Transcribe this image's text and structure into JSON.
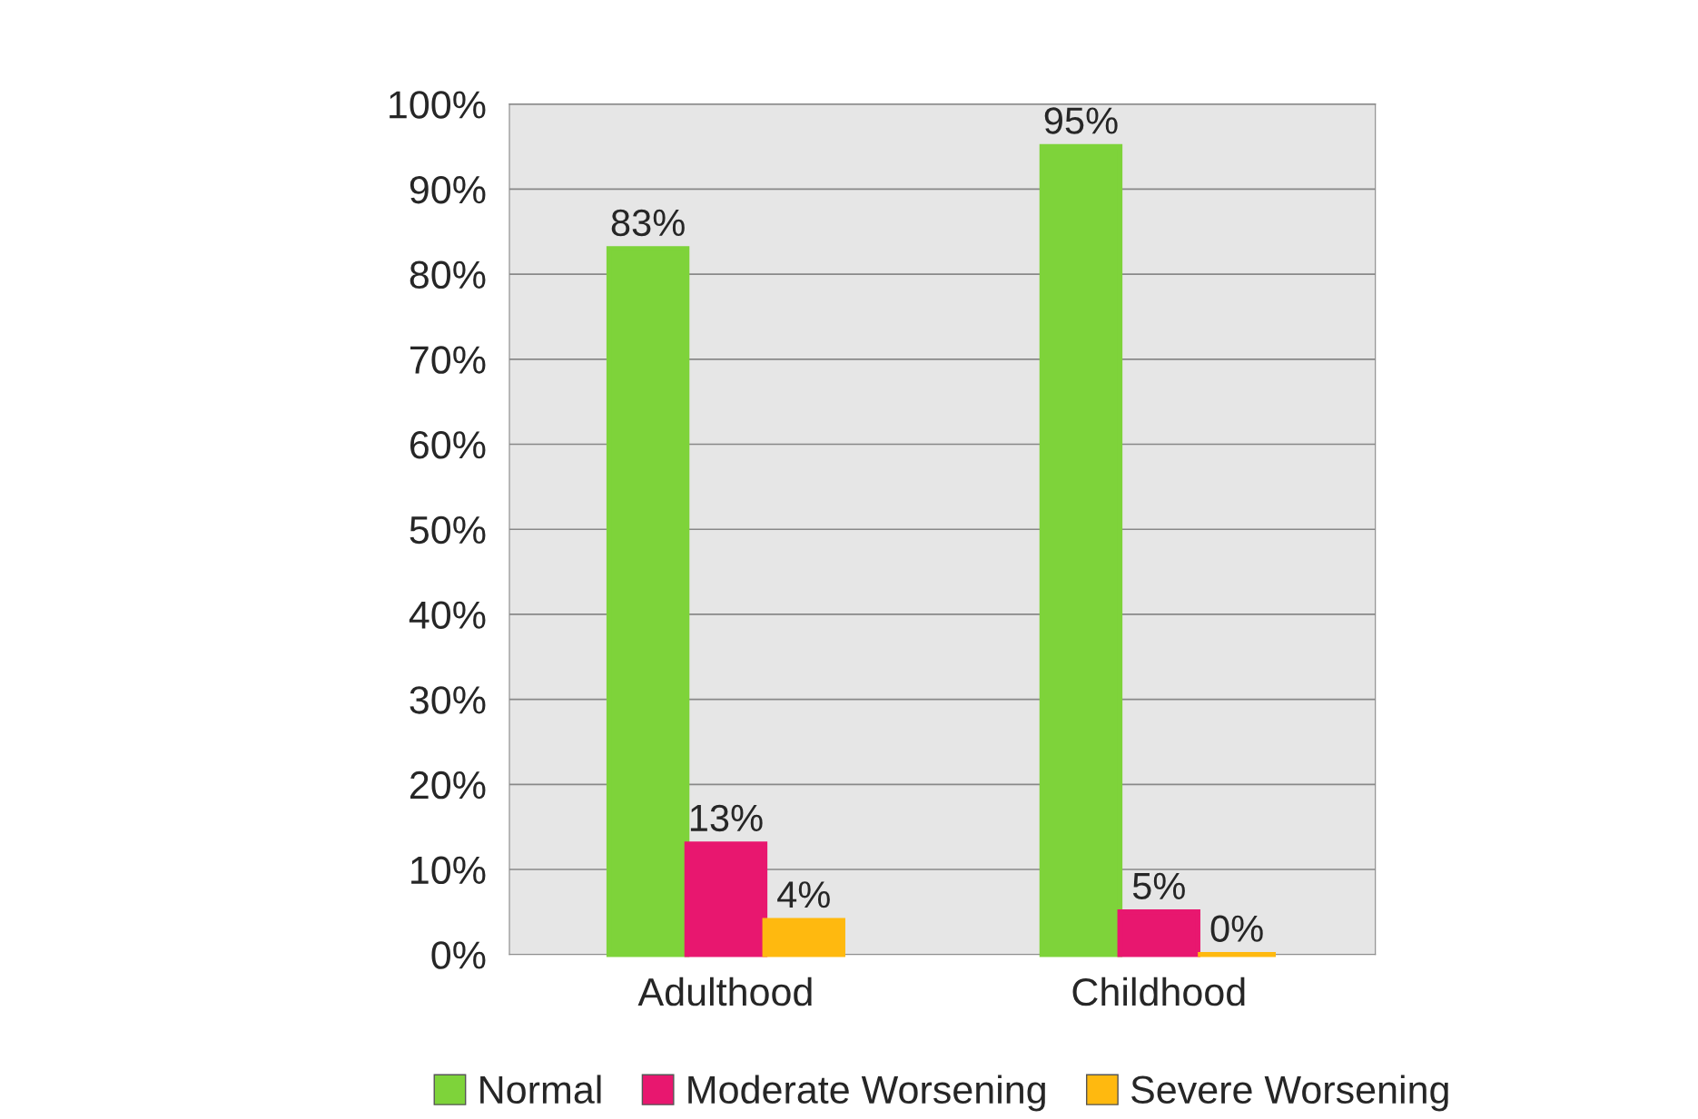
{
  "chart_data": {
    "type": "bar",
    "categories": [
      "Adulthood",
      "Childhood"
    ],
    "series": [
      {
        "name": "Normal",
        "color": "#7ed33a",
        "values": [
          83,
          95
        ],
        "value_labels": [
          "83%",
          "95%"
        ]
      },
      {
        "name": "Moderate Worsening",
        "color": "#e8176f",
        "values": [
          13,
          5
        ],
        "value_labels": [
          "13%",
          "5%"
        ]
      },
      {
        "name": "Severe Worsening",
        "color": "#ffb90f",
        "values": [
          4,
          0
        ],
        "value_labels": [
          "4%",
          "0%"
        ]
      }
    ],
    "ylim": [
      0,
      100
    ],
    "yticks": [
      {
        "value": 0,
        "label": "0%"
      },
      {
        "value": 10,
        "label": "10%"
      },
      {
        "value": 20,
        "label": "20%"
      },
      {
        "value": 30,
        "label": "30%"
      },
      {
        "value": 40,
        "label": "40%"
      },
      {
        "value": 50,
        "label": "50%"
      },
      {
        "value": 60,
        "label": "60%"
      },
      {
        "value": 70,
        "label": "70%"
      },
      {
        "value": 80,
        "label": "80%"
      },
      {
        "value": 90,
        "label": "90%"
      },
      {
        "value": 100,
        "label": "100%"
      }
    ],
    "grid": "y",
    "legend": "bottom"
  }
}
